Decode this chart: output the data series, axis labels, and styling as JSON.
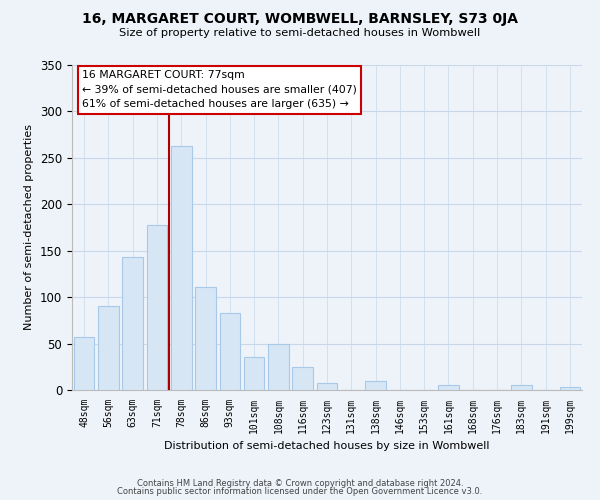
{
  "title": "16, MARGARET COURT, WOMBWELL, BARNSLEY, S73 0JA",
  "subtitle": "Size of property relative to semi-detached houses in Wombwell",
  "xlabel": "Distribution of semi-detached houses by size in Wombwell",
  "ylabel": "Number of semi-detached properties",
  "bar_labels": [
    "48sqm",
    "56sqm",
    "63sqm",
    "71sqm",
    "78sqm",
    "86sqm",
    "93sqm",
    "101sqm",
    "108sqm",
    "116sqm",
    "123sqm",
    "131sqm",
    "138sqm",
    "146sqm",
    "153sqm",
    "161sqm",
    "168sqm",
    "176sqm",
    "183sqm",
    "191sqm",
    "199sqm"
  ],
  "bar_values": [
    57,
    90,
    143,
    178,
    263,
    111,
    83,
    36,
    50,
    25,
    8,
    0,
    10,
    0,
    0,
    5,
    0,
    0,
    5,
    0,
    3
  ],
  "bar_fill_color": "#d6e6f5",
  "bar_edge_color": "#a8c8e8",
  "vline_color": "#aa0000",
  "ylim": [
    0,
    350
  ],
  "yticks": [
    0,
    50,
    100,
    150,
    200,
    250,
    300,
    350
  ],
  "annotation_title": "16 MARGARET COURT: 77sqm",
  "annotation_line1": "← 39% of semi-detached houses are smaller (407)",
  "annotation_line2": "61% of semi-detached houses are larger (635) →",
  "ann_box_color": "#cc0000",
  "footer1": "Contains HM Land Registry data © Crown copyright and database right 2024.",
  "footer2": "Contains public sector information licensed under the Open Government Licence v3.0.",
  "background_color": "#eef3f9",
  "plot_bg_color": "#eef3f9",
  "grid_color": "#c8d8ea"
}
